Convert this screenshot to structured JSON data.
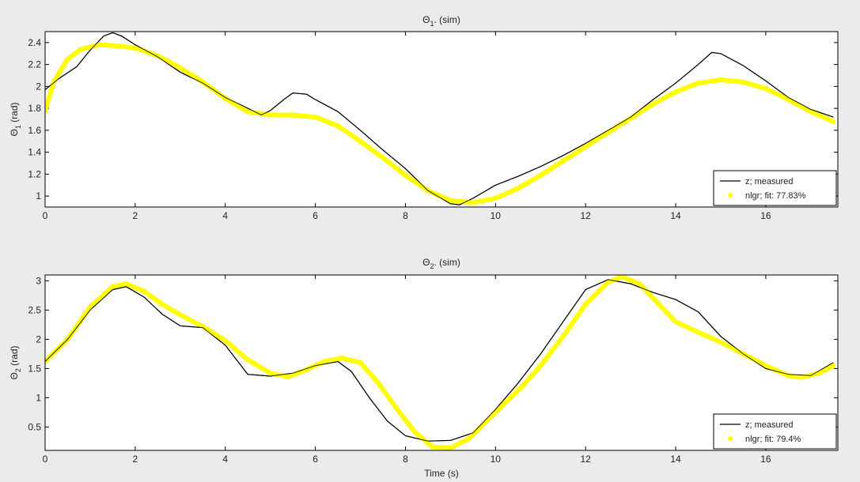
{
  "chart_data": [
    {
      "type": "line",
      "title_main": "Θ",
      "title_sub": "1",
      "title_tail": ". (sim)",
      "ylabel_main": "Θ",
      "ylabel_sub": "1",
      "ylabel_tail": " (rad)",
      "xlabel": "",
      "xlim": [
        0,
        17.6
      ],
      "ylim": [
        0.9,
        2.5
      ],
      "xticks": [
        0,
        2,
        4,
        6,
        8,
        10,
        12,
        14,
        16
      ],
      "yticks": [
        1,
        1.2,
        1.4,
        1.6,
        1.8,
        2,
        2.2,
        2.4
      ],
      "legend_position": "bottom-right",
      "series": [
        {
          "name": "z; measured",
          "color": "#000000",
          "style": "line",
          "x": [
            0,
            0.3,
            0.7,
            1.0,
            1.3,
            1.5,
            1.7,
            2.0,
            2.5,
            3.0,
            3.5,
            4.0,
            4.5,
            4.8,
            5.0,
            5.3,
            5.5,
            5.8,
            6.0,
            6.5,
            7.0,
            7.5,
            8.0,
            8.5,
            9.0,
            9.2,
            9.5,
            10.0,
            10.5,
            11.0,
            11.5,
            12.0,
            12.5,
            13.0,
            13.5,
            14.0,
            14.5,
            14.8,
            15.0,
            15.5,
            16.0,
            16.5,
            17.0,
            17.5
          ],
          "y": [
            1.97,
            2.07,
            2.18,
            2.33,
            2.46,
            2.49,
            2.46,
            2.38,
            2.27,
            2.13,
            2.03,
            1.9,
            1.8,
            1.74,
            1.78,
            1.88,
            1.94,
            1.93,
            1.88,
            1.77,
            1.6,
            1.42,
            1.25,
            1.05,
            0.93,
            0.92,
            0.98,
            1.1,
            1.18,
            1.27,
            1.37,
            1.48,
            1.6,
            1.72,
            1.88,
            2.03,
            2.2,
            2.31,
            2.3,
            2.19,
            2.05,
            1.9,
            1.79,
            1.72
          ]
        },
        {
          "name": "nlgr; fit: 77.83%",
          "color": "#ffff00",
          "style": "markers",
          "x": [
            0,
            0.2,
            0.5,
            0.8,
            1.2,
            1.6,
            2.0,
            2.5,
            3.0,
            3.5,
            4.0,
            4.5,
            5.0,
            5.5,
            6.0,
            6.5,
            7.0,
            7.5,
            8.0,
            8.5,
            9.0,
            9.5,
            10.0,
            10.5,
            11.0,
            11.5,
            12.0,
            12.5,
            13.0,
            13.5,
            14.0,
            14.5,
            15.0,
            15.5,
            16.0,
            16.5,
            17.0,
            17.5
          ],
          "y": [
            1.78,
            2.05,
            2.25,
            2.34,
            2.38,
            2.37,
            2.35,
            2.28,
            2.17,
            2.04,
            1.89,
            1.77,
            1.74,
            1.74,
            1.72,
            1.64,
            1.5,
            1.35,
            1.19,
            1.05,
            0.96,
            0.94,
            0.98,
            1.07,
            1.19,
            1.32,
            1.45,
            1.58,
            1.71,
            1.84,
            1.95,
            2.03,
            2.06,
            2.04,
            1.98,
            1.88,
            1.77,
            1.68
          ]
        }
      ]
    },
    {
      "type": "line",
      "title_main": "Θ",
      "title_sub": "2",
      "title_tail": ". (sim)",
      "ylabel_main": "Θ",
      "ylabel_sub": "2",
      "ylabel_tail": " (rad)",
      "xlabel": "Time (s)",
      "xlim": [
        0,
        17.6
      ],
      "ylim": [
        0.1,
        3.1
      ],
      "xticks": [
        0,
        2,
        4,
        6,
        8,
        10,
        12,
        14,
        16
      ],
      "yticks": [
        0.5,
        1,
        1.5,
        2,
        2.5,
        3
      ],
      "legend_position": "bottom-right",
      "series": [
        {
          "name": "z; measured",
          "color": "#000000",
          "style": "line",
          "x": [
            0,
            0.5,
            1.0,
            1.5,
            1.8,
            2.2,
            2.6,
            3.0,
            3.5,
            4.0,
            4.5,
            5.0,
            5.5,
            6.0,
            6.5,
            6.8,
            7.2,
            7.6,
            8.0,
            8.5,
            9.0,
            9.5,
            10.0,
            10.5,
            11.0,
            11.5,
            12.0,
            12.5,
            13.0,
            13.5,
            14.0,
            14.5,
            15.0,
            15.5,
            16.0,
            16.5,
            17.0,
            17.5
          ],
          "y": [
            1.62,
            2.0,
            2.5,
            2.85,
            2.9,
            2.72,
            2.43,
            2.23,
            2.2,
            1.9,
            1.4,
            1.37,
            1.42,
            1.55,
            1.62,
            1.45,
            1.0,
            0.6,
            0.35,
            0.26,
            0.27,
            0.4,
            0.8,
            1.25,
            1.75,
            2.3,
            2.85,
            3.02,
            2.95,
            2.8,
            2.68,
            2.47,
            2.05,
            1.75,
            1.5,
            1.4,
            1.38,
            1.6
          ]
        },
        {
          "name": "nlgr; fit: 79.4%",
          "color": "#ffff00",
          "style": "markers",
          "x": [
            0,
            0.5,
            1.0,
            1.5,
            1.8,
            2.2,
            2.6,
            3.0,
            3.5,
            4.0,
            4.5,
            5.0,
            5.4,
            5.8,
            6.2,
            6.6,
            7.0,
            7.4,
            7.8,
            8.2,
            8.6,
            9.0,
            9.4,
            9.8,
            10.2,
            10.6,
            11.0,
            11.5,
            12.0,
            12.5,
            12.8,
            13.2,
            13.6,
            14.0,
            14.5,
            15.0,
            15.5,
            16.0,
            16.5,
            16.8,
            17.2,
            17.5
          ],
          "y": [
            1.62,
            2.0,
            2.55,
            2.9,
            2.95,
            2.82,
            2.6,
            2.42,
            2.22,
            1.98,
            1.65,
            1.42,
            1.36,
            1.48,
            1.62,
            1.68,
            1.6,
            1.25,
            0.82,
            0.42,
            0.16,
            0.14,
            0.3,
            0.6,
            0.9,
            1.2,
            1.55,
            2.05,
            2.6,
            2.98,
            3.07,
            2.95,
            2.62,
            2.3,
            2.12,
            1.95,
            1.75,
            1.55,
            1.38,
            1.35,
            1.43,
            1.55
          ]
        }
      ]
    }
  ]
}
